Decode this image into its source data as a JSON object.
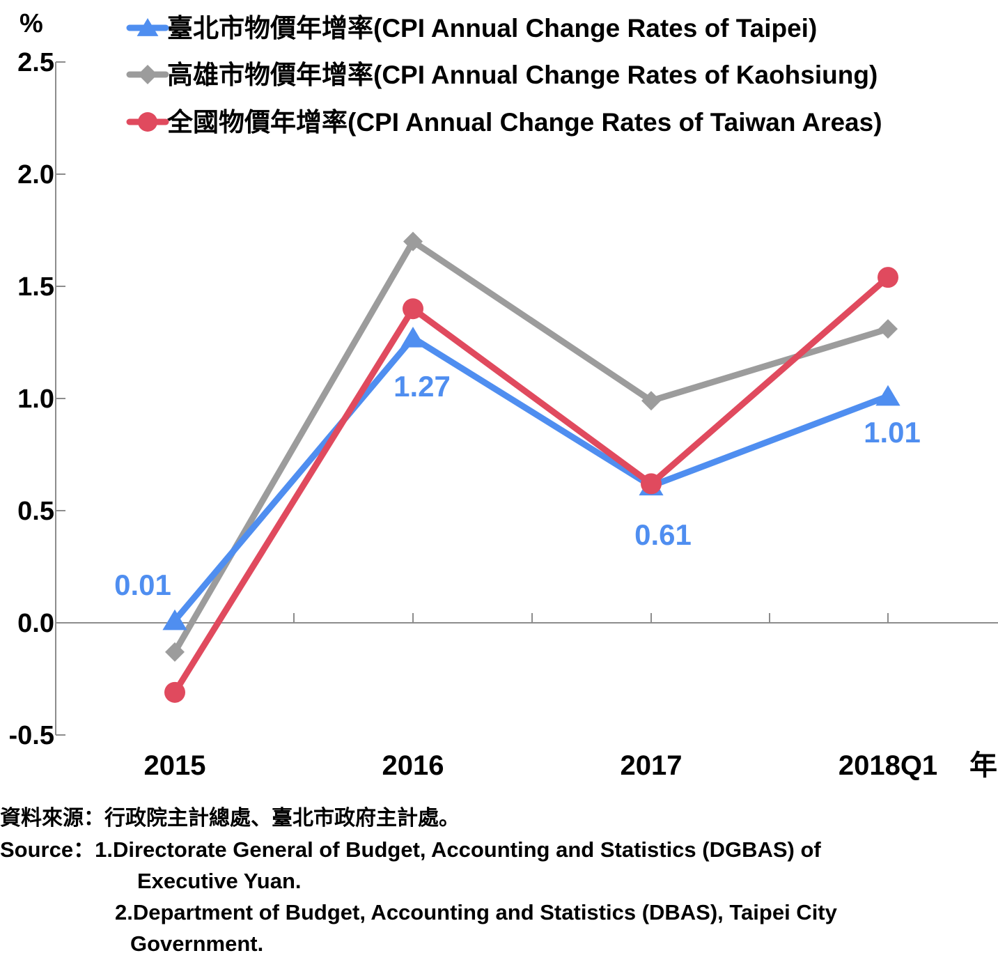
{
  "chart_data": {
    "type": "line",
    "y_unit": "%",
    "x_unit": "年",
    "categories": [
      "2015",
      "2016",
      "2017",
      "2018Q1"
    ],
    "ylim": [
      -0.5,
      2.5
    ],
    "yticks": [
      "2.5",
      "2.0",
      "1.5",
      "1.0",
      "0.5",
      "0.0",
      "-0.5"
    ],
    "ytick_values": [
      2.5,
      2.0,
      1.5,
      1.0,
      0.5,
      0.0,
      -0.5
    ],
    "grid": false,
    "legend_position": "top",
    "series": [
      {
        "name": "臺北市物價年增率(CPI Annual Change Rates of Taipei)",
        "values": [
          0.01,
          1.27,
          0.61,
          1.01
        ],
        "data_labels": [
          "0.01",
          "1.27",
          "0.61",
          "1.01"
        ],
        "color": "#4f8ef0",
        "marker": "triangle"
      },
      {
        "name": "高雄市物價年增率(CPI Annual Change Rates of Kaohsiung)",
        "values": [
          -0.13,
          1.7,
          0.99,
          1.31
        ],
        "color": "#9c9c9c",
        "marker": "diamond"
      },
      {
        "name": "全國物價年增率(CPI Annual Change Rates of Taiwan Areas)",
        "values": [
          -0.31,
          1.4,
          0.62,
          1.54
        ],
        "color": "#e04a5e",
        "marker": "circle"
      }
    ]
  },
  "source": {
    "zh": "資料來源：行政院主計總處、臺北市政府主計處。",
    "en_line1": "Source：1.Directorate General of Budget, Accounting and Statistics (DGBAS) of",
    "en_line2": "Executive Yuan.",
    "en_line3": "2.Department of Budget, Accounting and Statistics (DBAS), Taipei City",
    "en_line4": "Government."
  }
}
